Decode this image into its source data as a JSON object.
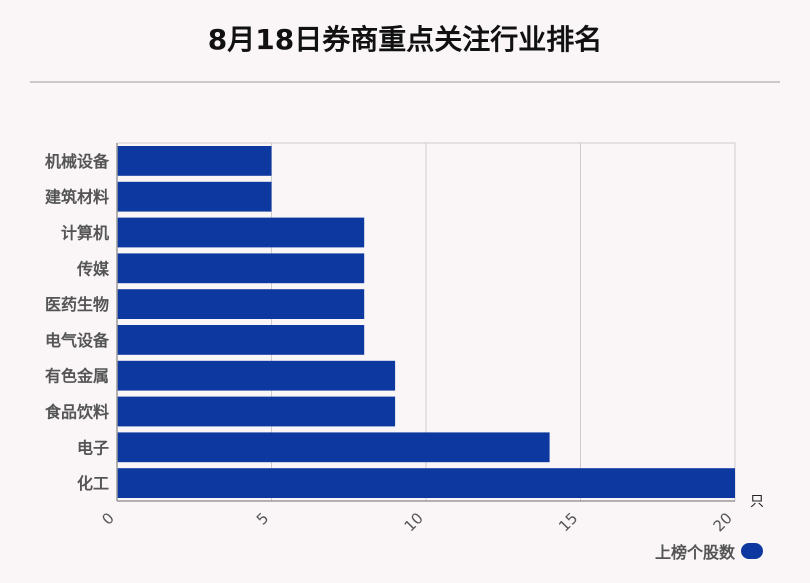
{
  "title": "8月18日券商重点关注行业排名",
  "unit_label": "只",
  "colors": {
    "bar": "#0c38a0",
    "grid": "#cccccc",
    "axis": "#999999",
    "label": "#555555"
  },
  "chart_data": {
    "type": "bar",
    "orientation": "horizontal",
    "categories": [
      "机械设备",
      "建筑材料",
      "计算机",
      "传媒",
      "医药生物",
      "电气设备",
      "有色金属",
      "食品饮料",
      "电子",
      "化工"
    ],
    "series": [
      {
        "name": "上榜个股数",
        "values": [
          5,
          5,
          8,
          8,
          8,
          8,
          9,
          9,
          14,
          20
        ]
      }
    ],
    "xlim": [
      0,
      20
    ],
    "xticks": [
      0,
      5,
      10,
      15,
      20
    ],
    "grid": true,
    "legend": "bottom-right"
  }
}
